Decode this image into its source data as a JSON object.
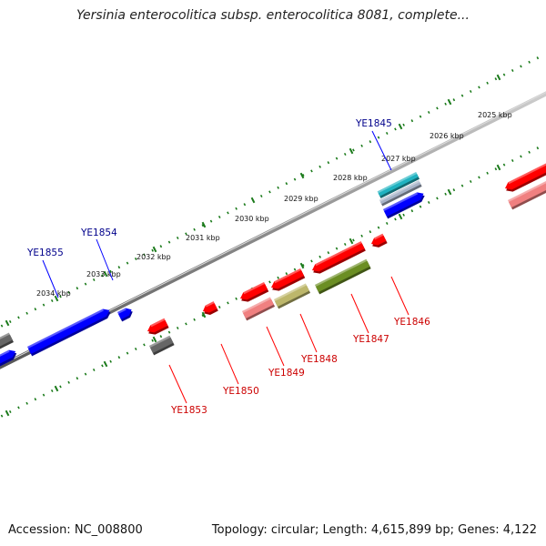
{
  "title": "Yersinia enterocolitica subsp. enterocolitica 8081, complete...",
  "footer": {
    "accession": "Accession: NC_008800",
    "summary": "Topology: circular; Length: 4,615,899 bp; Genes: 4,122"
  },
  "colors": {
    "forward_gene": "#0000ff",
    "reverse_gene": "#ff0000",
    "pseudo_reverse": "#f08080",
    "olive_gene": "#6b8e23",
    "khaki_gene": "#bdb76b",
    "grey_gene": "#666666",
    "cyan_gene": "#20b2c0",
    "tick": "#1a7a1a",
    "backbone": "#888888",
    "forward_label": "#00008b",
    "reverse_label": "#cc0000"
  },
  "upper_ticks": [
    {
      "label": "2025 kbp"
    },
    {
      "label": "2026 kbp"
    },
    {
      "label": "2027 kbp"
    },
    {
      "label": "2028 kbp"
    },
    {
      "label": "2029 kbp"
    },
    {
      "label": "2030 kbp"
    },
    {
      "label": "2031 kbp"
    },
    {
      "label": "2032 kbp"
    },
    {
      "label": "2033 kbp"
    },
    {
      "label": "2034 kbp"
    }
  ],
  "gene_labels": [
    {
      "text": "YE1845",
      "strand": "forward"
    },
    {
      "text": "YE1854",
      "strand": "forward"
    },
    {
      "text": "YE1855",
      "strand": "forward"
    },
    {
      "text": "YE1846",
      "strand": "reverse"
    },
    {
      "text": "YE1847",
      "strand": "reverse"
    },
    {
      "text": "YE1848",
      "strand": "reverse"
    },
    {
      "text": "YE1849",
      "strand": "reverse"
    },
    {
      "text": "YE1850",
      "strand": "reverse"
    },
    {
      "text": "YE1853",
      "strand": "reverse"
    }
  ]
}
